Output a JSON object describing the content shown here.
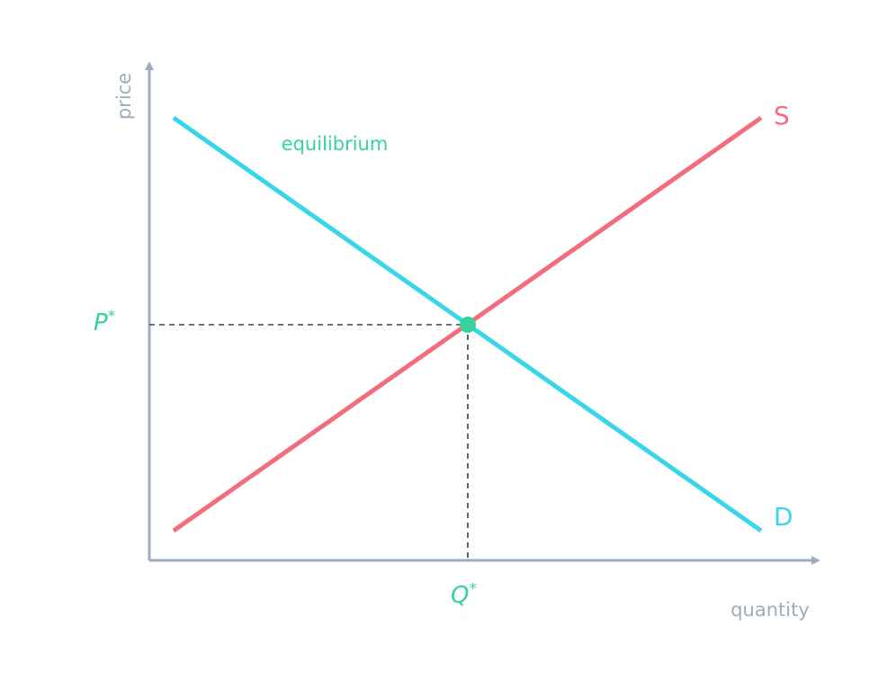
{
  "diagram": {
    "axes": {
      "x_label": "quantity",
      "y_label": "price"
    },
    "curves": [
      {
        "id": "supply",
        "label": "S",
        "color": "#f26d7d"
      },
      {
        "id": "demand",
        "label": "D",
        "color": "#38d6e8"
      }
    ],
    "equilibrium": {
      "label": "equilibrium",
      "price_label": "P",
      "quantity_label": "Q",
      "star": "*",
      "color": "#34d399"
    },
    "colors": {
      "axis": "#9eacbf",
      "guide": "#334155"
    }
  }
}
